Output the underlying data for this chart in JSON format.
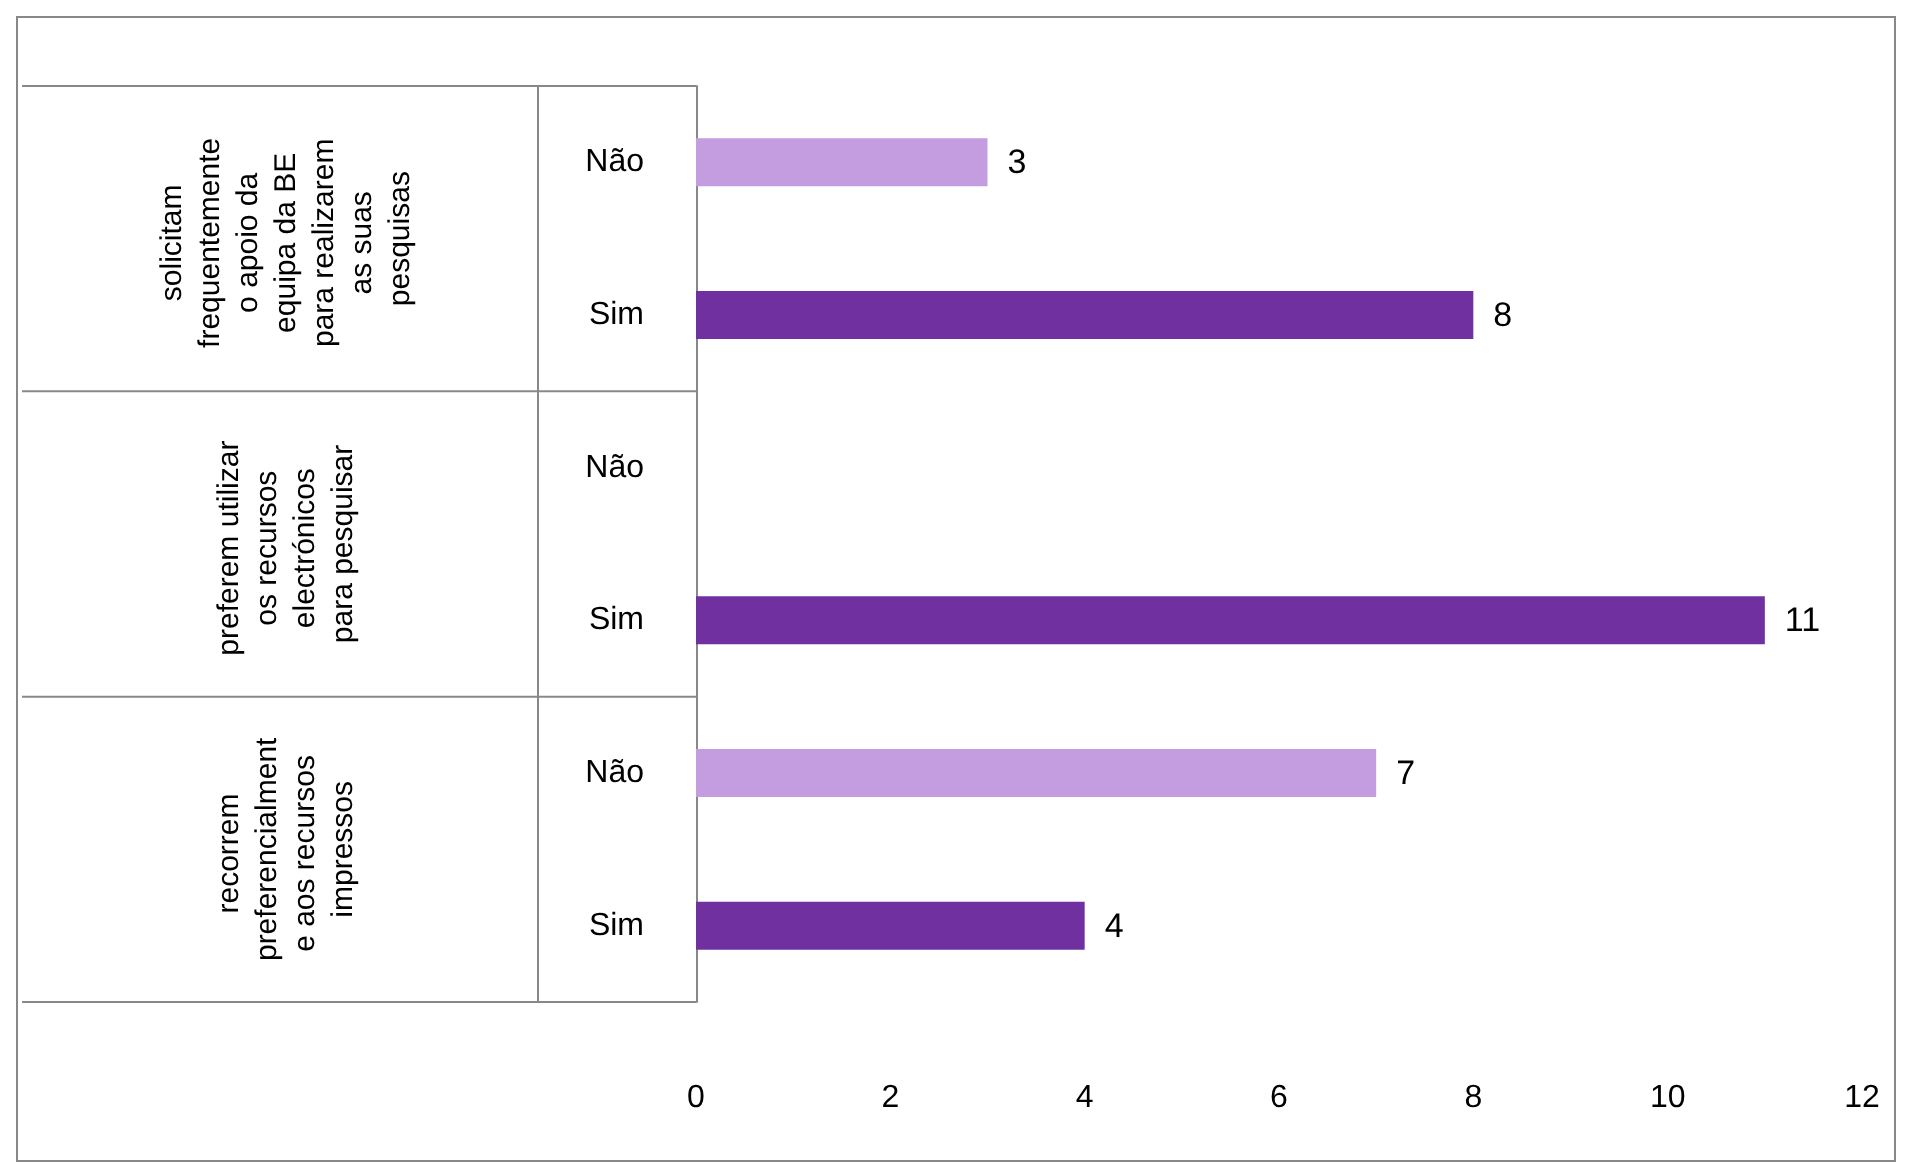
{
  "chart_data": {
    "type": "bar",
    "orientation": "horizontal",
    "categories": [
      "Não",
      "Sim",
      "Não",
      "Sim",
      "Não",
      "Sim"
    ],
    "values": [
      3,
      8,
      null,
      11,
      7,
      4
    ],
    "colors": [
      "#c39ddf",
      "#7030a0",
      null,
      "#7030a0",
      "#c39ddf",
      "#7030a0"
    ],
    "xlim": [
      0,
      12
    ],
    "xticks": [
      0,
      2,
      4,
      6,
      8,
      10,
      12
    ],
    "data_labels": true,
    "grid": false,
    "annotations": [
      "solicitam frequentemente o apoio da equipa da BE para realizarem as suas pesquisas",
      "preferem utilizar os recursos electrónicos para pesquisar",
      "recorrem preferencialmente aos recursos impressos"
    ]
  }
}
